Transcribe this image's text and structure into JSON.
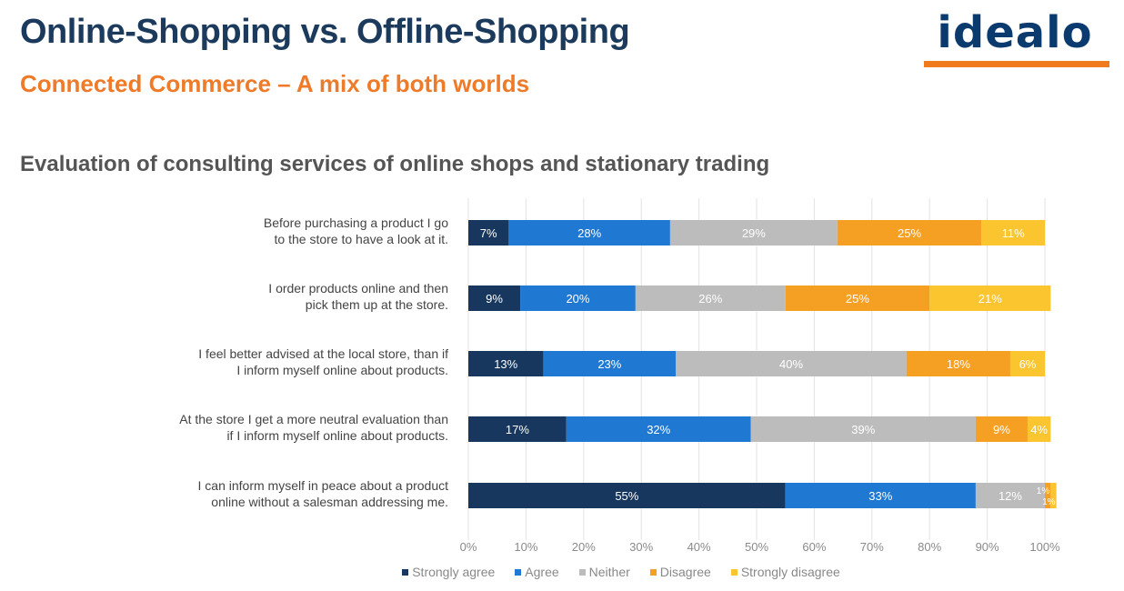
{
  "header": {
    "title": "Online-Shopping vs. Offline-Shopping",
    "subtitle": "Connected Commerce – A mix of both worlds",
    "logo_text": "idealo"
  },
  "colors": {
    "title": "#1b3a5c",
    "subtitle": "#ee7b2a",
    "logo": "#0a3a6e",
    "logo_bar": "#f07b1d"
  },
  "chart_data": {
    "type": "bar",
    "orientation": "horizontal",
    "stacked": true,
    "title": "Evaluation of consulting services of online shops and stationary trading",
    "categories": [
      [
        "Before purchasing a product I go",
        "to the store to have a look at it."
      ],
      [
        "I order products online and then",
        "pick them up at the store."
      ],
      [
        "I feel better advised at the local store, than if",
        "I inform myself online about products."
      ],
      [
        "At the store I get a more neutral evaluation than",
        "if I inform myself online about products."
      ],
      [
        "I can inform myself in peace about a product",
        "online without a salesman addressing me."
      ]
    ],
    "series": [
      {
        "name": "Strongly agree",
        "color": "#17375e",
        "values": [
          7,
          9,
          13,
          17,
          55
        ]
      },
      {
        "name": "Agree",
        "color": "#1f78d1",
        "values": [
          28,
          20,
          23,
          32,
          33
        ]
      },
      {
        "name": "Neither",
        "color": "#bcbcbc",
        "values": [
          29,
          26,
          40,
          39,
          12
        ]
      },
      {
        "name": "Disagree",
        "color": "#f5a023",
        "values": [
          25,
          25,
          18,
          9,
          1
        ]
      },
      {
        "name": "Strongly disagree",
        "color": "#fbc530",
        "values": [
          11,
          21,
          6,
          4,
          1
        ]
      }
    ],
    "xlim": [
      0,
      100
    ],
    "x_ticks": [
      "0%",
      "10%",
      "20%",
      "30%",
      "40%",
      "50%",
      "60%",
      "70%",
      "80%",
      "90%",
      "100%"
    ],
    "value_format": "percent",
    "gridlines": true,
    "legend_position": "bottom"
  }
}
